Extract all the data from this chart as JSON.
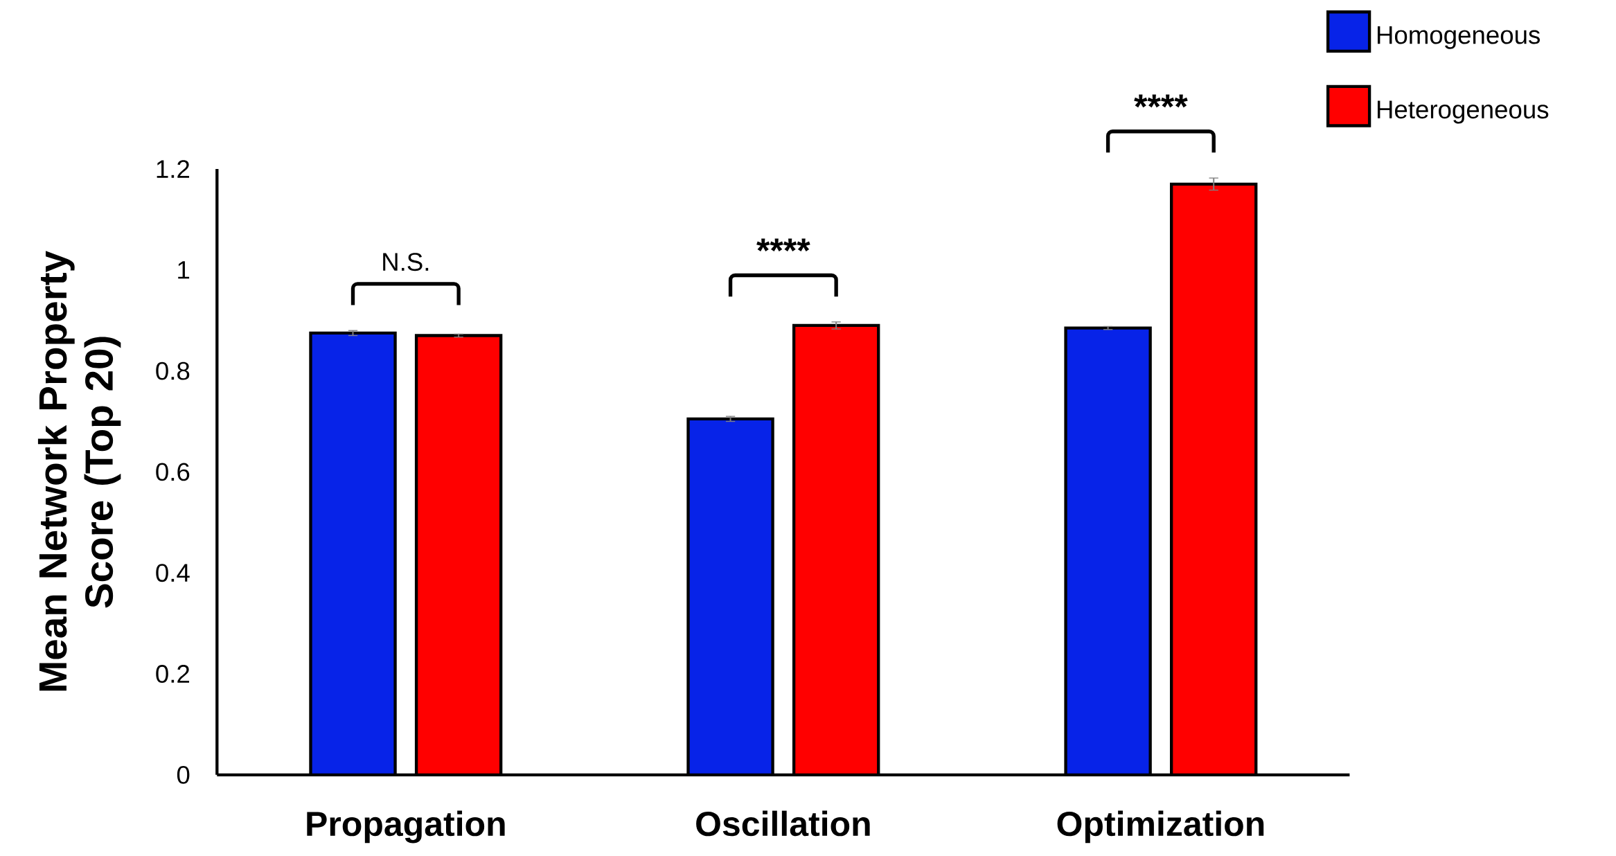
{
  "chart_data": {
    "type": "bar",
    "ylabel": "Mean Network Property Score (Top 20)",
    "categories": [
      "Propagation",
      "Oscillation",
      "Optimization"
    ],
    "series": [
      {
        "name": "Homogeneous",
        "color": "#0723e8",
        "values": [
          0.875,
          0.705,
          0.885
        ],
        "errors": [
          0.005,
          0.005,
          0.003
        ]
      },
      {
        "name": "Heterogeneous",
        "color": "#ff0000",
        "values": [
          0.87,
          0.89,
          1.17
        ],
        "errors": [
          0.003,
          0.007,
          0.012
        ]
      }
    ],
    "ylim": [
      0,
      1.2
    ],
    "yticks": [
      0,
      0.2,
      0.4,
      0.6,
      0.8,
      1,
      1.2
    ],
    "annotations": [
      "N.S.",
      "****",
      "****"
    ],
    "legend": "top right"
  }
}
